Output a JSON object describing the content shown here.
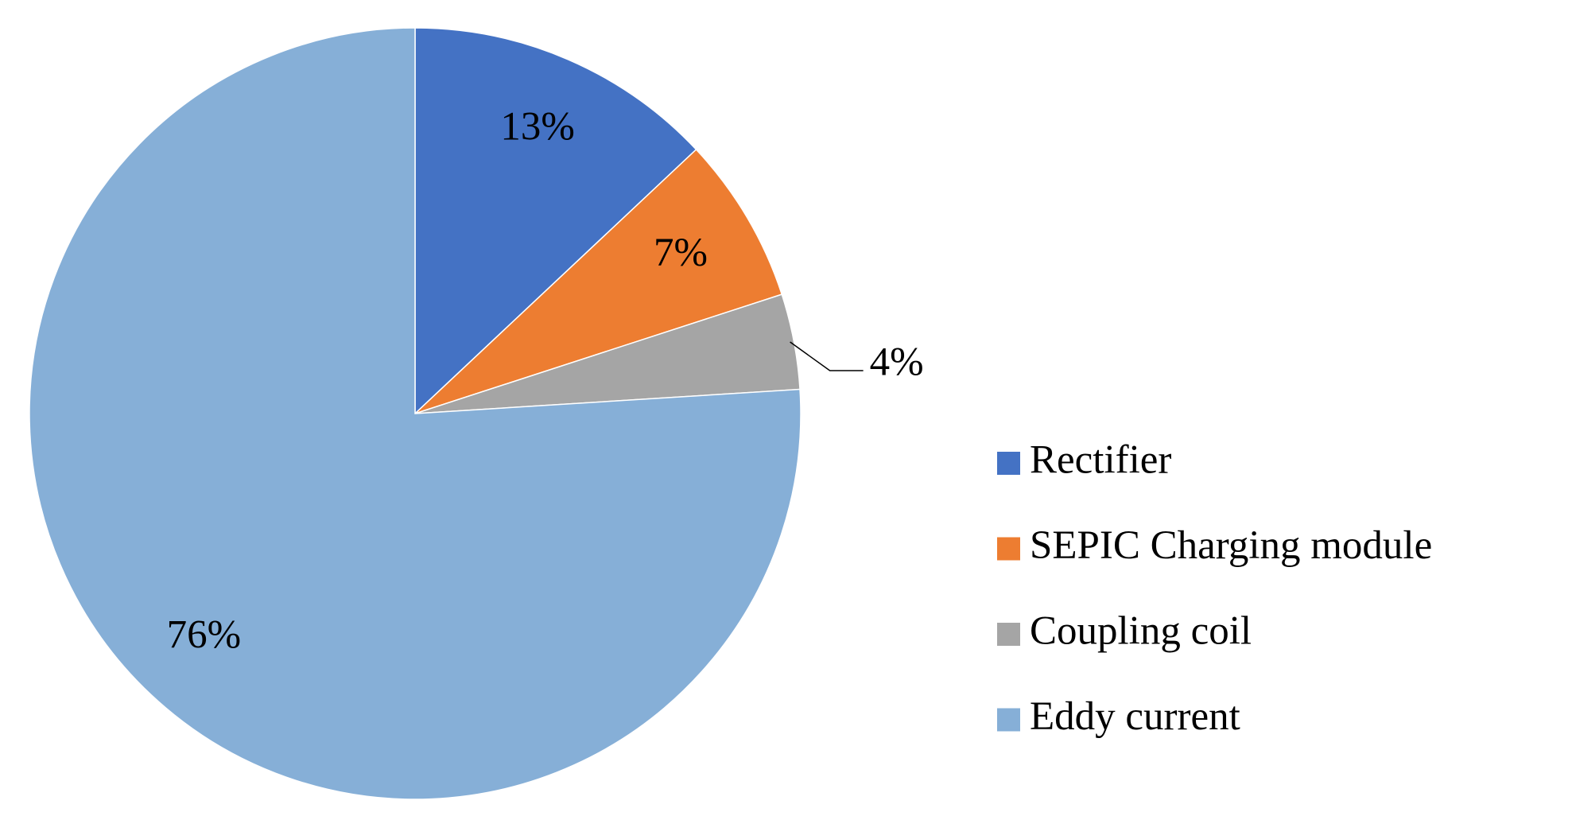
{
  "chart_data": {
    "type": "pie",
    "categories": [
      "Rectifier",
      "SEPIC Charging module",
      "Coupling coil",
      "Eddy current"
    ],
    "values": [
      13,
      7,
      4,
      76
    ],
    "value_labels": [
      "13%",
      "7%",
      "4%",
      "76%"
    ],
    "colors": [
      "#4472c4",
      "#ed7d31",
      "#a5a5a5",
      "#86afd7"
    ],
    "legend": "right"
  }
}
